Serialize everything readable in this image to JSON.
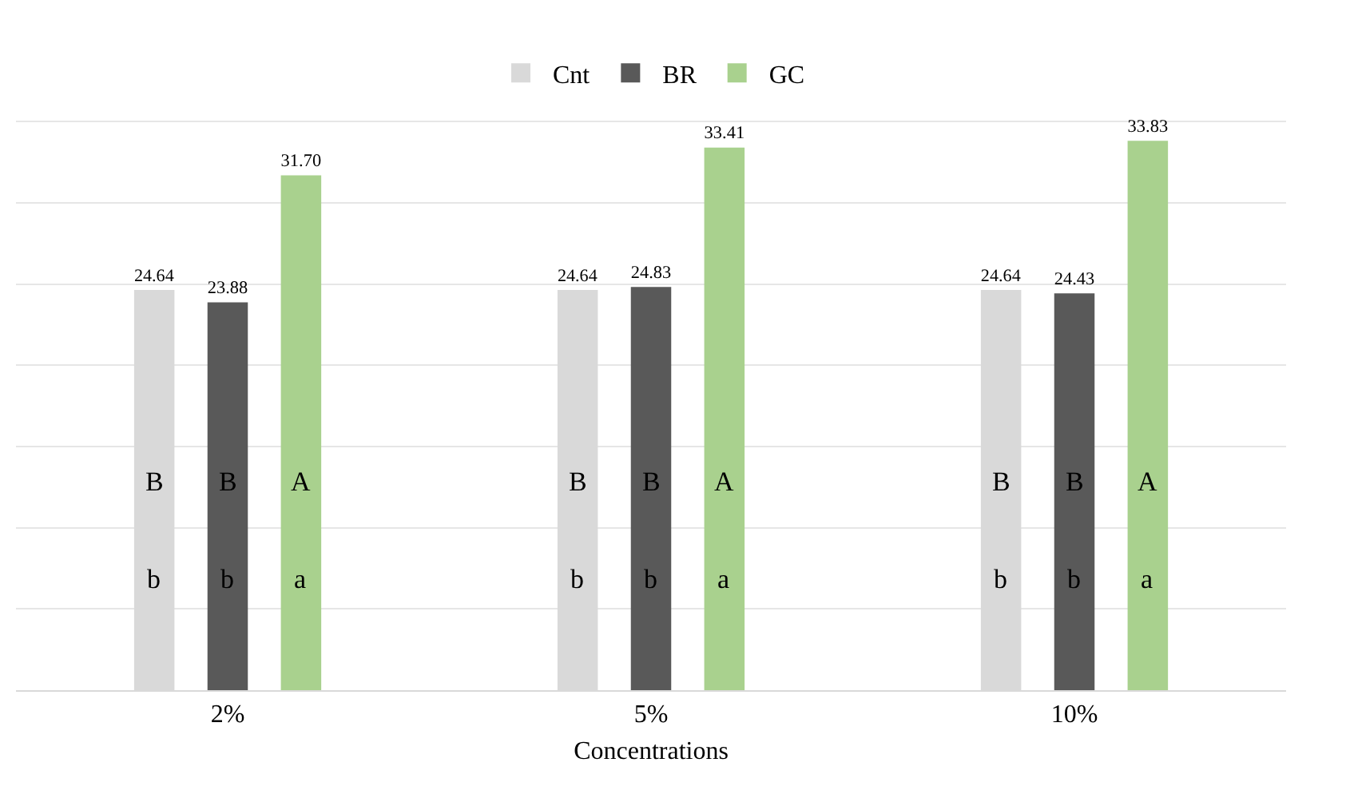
{
  "chart_data": {
    "type": "bar",
    "xlabel": "Concentrations",
    "categories": [
      "2%",
      "5%",
      "10%"
    ],
    "series": [
      {
        "name": "Cnt",
        "color": "#d9d9d9",
        "values": [
          24.64,
          24.64,
          24.64
        ],
        "value_labels": [
          "24.64",
          "24.64",
          "24.64"
        ]
      },
      {
        "name": "BR",
        "color": "#595959",
        "values": [
          23.88,
          24.83,
          24.43
        ],
        "value_labels": [
          "23.88",
          "24.83",
          "24.43"
        ]
      },
      {
        "name": "GC",
        "color": "#a9d18e",
        "values": [
          31.7,
          33.41,
          33.83
        ],
        "value_labels": [
          "31.70",
          "33.41",
          "33.83"
        ]
      }
    ],
    "tick_labels": "x",
    "grid": "y",
    "legend": "top",
    "annotations": [
      "B",
      "B",
      "A",
      "b",
      "b",
      "a",
      "B",
      "B",
      "A",
      "b",
      "b",
      "a",
      "B",
      "B",
      "A",
      "b",
      "b",
      "a"
    ]
  }
}
